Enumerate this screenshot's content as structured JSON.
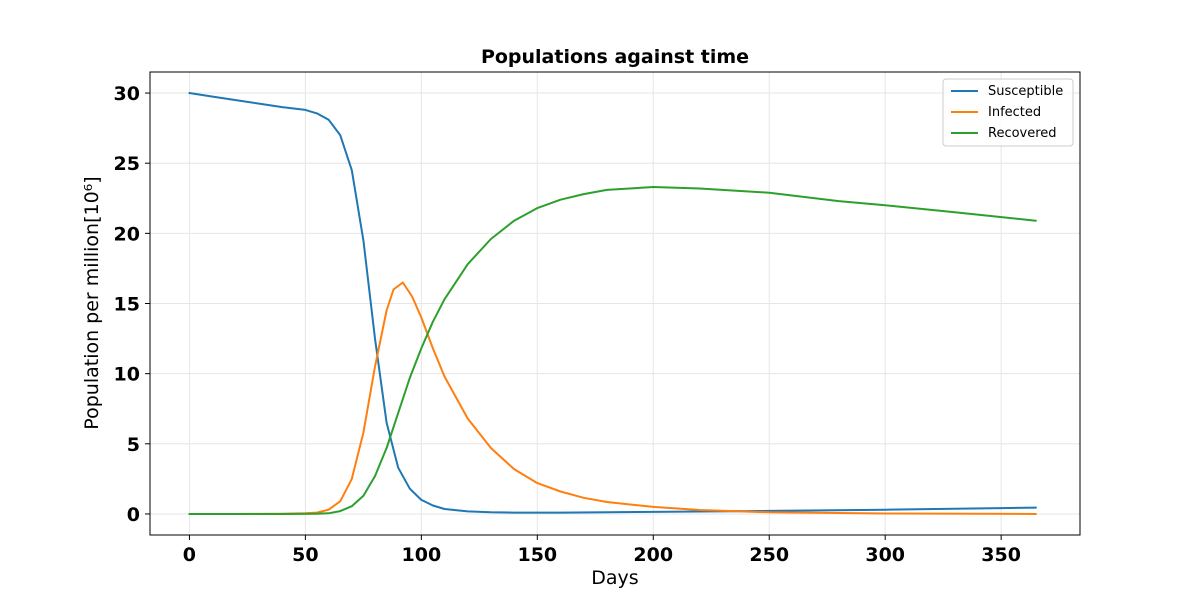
{
  "chart_data": {
    "type": "line",
    "title": "Populations against time",
    "xlabel": "Days",
    "ylabel": "Population per million[10⁶]",
    "xlim": [
      -17,
      384
    ],
    "ylim": [
      -1.5,
      31.5
    ],
    "xticks": [
      0,
      50,
      100,
      150,
      200,
      250,
      300,
      350
    ],
    "yticks": [
      0,
      5,
      10,
      15,
      20,
      25,
      30
    ],
    "grid": true,
    "legend_position": "top-right",
    "series": [
      {
        "name": "Susceptible",
        "color": "#1f77b4",
        "x": [
          0,
          10,
          20,
          30,
          40,
          50,
          55,
          60,
          65,
          70,
          75,
          80,
          85,
          90,
          95,
          100,
          105,
          110,
          120,
          130,
          140,
          150,
          160,
          180,
          200,
          250,
          300,
          350,
          365
        ],
        "y": [
          30,
          29.75,
          29.5,
          29.25,
          29.0,
          28.8,
          28.55,
          28.1,
          27.0,
          24.5,
          19.5,
          12.5,
          6.5,
          3.3,
          1.8,
          1.0,
          0.6,
          0.35,
          0.18,
          0.12,
          0.1,
          0.1,
          0.1,
          0.12,
          0.15,
          0.22,
          0.3,
          0.42,
          0.45
        ]
      },
      {
        "name": "Infected",
        "color": "#ff7f0e",
        "x": [
          0,
          20,
          40,
          50,
          55,
          60,
          65,
          70,
          75,
          80,
          85,
          88,
          92,
          96,
          100,
          105,
          110,
          120,
          130,
          140,
          150,
          160,
          170,
          180,
          200,
          220,
          250,
          300,
          365
        ],
        "y": [
          0,
          0,
          0.02,
          0.05,
          0.1,
          0.3,
          0.9,
          2.5,
          5.8,
          10.5,
          14.5,
          16.0,
          16.5,
          15.5,
          14.0,
          11.8,
          9.8,
          6.8,
          4.7,
          3.2,
          2.2,
          1.6,
          1.15,
          0.85,
          0.5,
          0.28,
          0.12,
          0.03,
          0
        ]
      },
      {
        "name": "Recovered",
        "color": "#2ca02c",
        "x": [
          0,
          40,
          55,
          60,
          65,
          70,
          75,
          80,
          85,
          90,
          95,
          100,
          105,
          110,
          120,
          130,
          140,
          150,
          160,
          170,
          180,
          200,
          220,
          250,
          280,
          300,
          330,
          365
        ],
        "y": [
          0,
          0,
          0.02,
          0.05,
          0.2,
          0.55,
          1.3,
          2.7,
          4.7,
          7.2,
          9.7,
          11.8,
          13.7,
          15.3,
          17.8,
          19.6,
          20.9,
          21.8,
          22.4,
          22.8,
          23.1,
          23.3,
          23.2,
          22.9,
          22.3,
          22.0,
          21.5,
          20.9
        ]
      }
    ]
  }
}
